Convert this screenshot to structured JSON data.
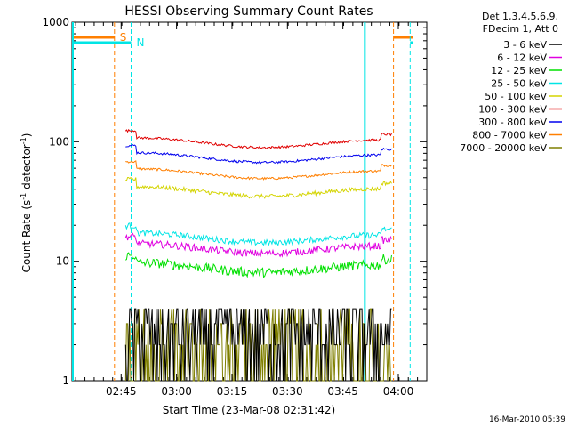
{
  "chart_data": {
    "type": "line",
    "title": "HESSI Observing Summary Count Rates",
    "xlabel": "Start Time (23-Mar-08 02:31:42)",
    "ylabel_main": "Count Rate (s",
    "ylabel_sup1": "-1",
    "ylabel_mid": " detector",
    "ylabel_sup2": "-1",
    "ylabel_end": ")",
    "y_scale": "log",
    "ylim": [
      1,
      1000
    ],
    "xlim_minutes": [
      0,
      96
    ],
    "x_ticks": [
      {
        "label": "02:45",
        "minute": 13.3
      },
      {
        "label": "03:00",
        "minute": 28.3
      },
      {
        "label": "03:15",
        "minute": 43.3
      },
      {
        "label": "03:30",
        "minute": 58.3
      },
      {
        "label": "03:45",
        "minute": 73.3
      },
      {
        "label": "04:00",
        "minute": 88.3
      }
    ],
    "y_ticks": [
      {
        "label": "1",
        "value": 1
      },
      {
        "label": "10",
        "value": 10
      },
      {
        "label": "100",
        "value": 100
      },
      {
        "label": "1000",
        "value": 1000
      }
    ],
    "legend_header": [
      "Det 1,3,4,5,6,9,",
      "FDecim 1, Att 0"
    ],
    "series": [
      {
        "name": "3 - 6 keV",
        "color": "#000000",
        "level": 3.0,
        "noise": 0.22
      },
      {
        "name": "6 - 12 keV",
        "color": "#e000e0",
        "level": 13,
        "noise": 0.06
      },
      {
        "name": "12 - 25 keV",
        "color": "#00e000",
        "level": 9,
        "noise": 0.08
      },
      {
        "name": "25 - 50 keV",
        "color": "#00e5e5",
        "level": 16,
        "noise": 0.05
      },
      {
        "name": "50 - 100 keV",
        "color": "#d4d400",
        "level": 39,
        "noise": 0.035
      },
      {
        "name": "100 - 300 keV",
        "color": "#e00000",
        "level": 100,
        "noise": 0.02
      },
      {
        "name": "300 - 800 keV",
        "color": "#0000ee",
        "level": 75,
        "noise": 0.02
      },
      {
        "name": "800 - 7000 keV",
        "color": "#ff7f00",
        "level": 55,
        "noise": 0.02
      },
      {
        "name": "7000 - 20000 keV",
        "color": "#7f7f00",
        "level": 2.5,
        "noise": 0.3
      }
    ],
    "data_start_minute": 14.5,
    "data_end_minute": 86.5,
    "markers": [
      {
        "label": "S",
        "color": "#ff7f00",
        "type": "saa",
        "minute": 11.5,
        "end_minute": 87.0
      },
      {
        "label": "N",
        "color": "#00e5e5",
        "type": "night",
        "minute": 16.0,
        "end_minute": 91.5
      }
    ],
    "night_solid_minutes": [
      0,
      79.0
    ],
    "footer": "16-Mar-2010 05:39"
  }
}
